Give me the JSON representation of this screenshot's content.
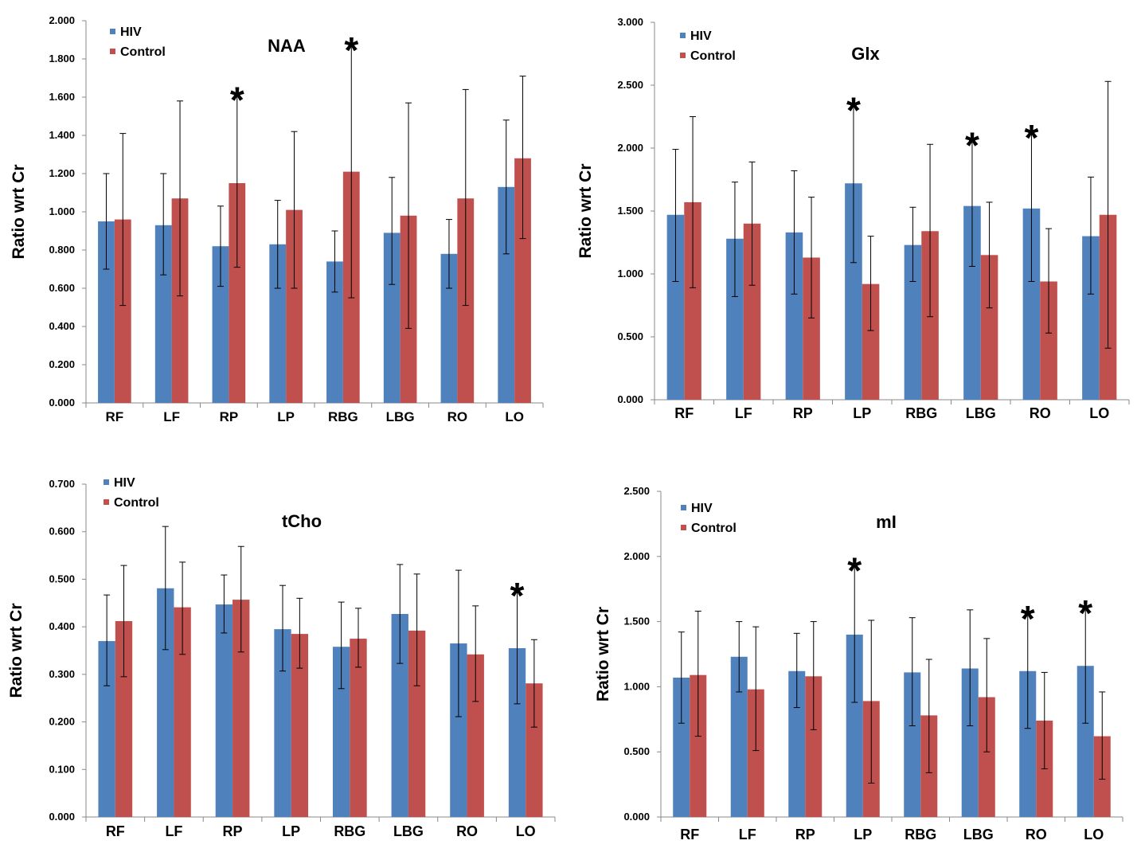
{
  "colors": {
    "HIV": "#4F81BD",
    "Control": "#C0504D"
  },
  "chart_data": [
    {
      "type": "bar",
      "title": "NAA",
      "ylabel": "Ratio wrt Cr",
      "xlabel": "",
      "ylim": [
        0,
        2
      ],
      "ystep": 0.2,
      "legend": [
        "HIV",
        "Control"
      ],
      "legend_position": "top-left",
      "categories": [
        "RF",
        "LF",
        "RP",
        "LP",
        "RBG",
        "LBG",
        "RO",
        "LO"
      ],
      "series": [
        {
          "name": "HIV",
          "values": [
            0.95,
            0.93,
            0.82,
            0.83,
            0.74,
            0.89,
            0.78,
            1.13
          ],
          "err_high": [
            1.2,
            1.2,
            1.03,
            1.06,
            0.9,
            1.18,
            0.96,
            1.48
          ],
          "err_low": [
            0.7,
            0.67,
            0.61,
            0.6,
            0.58,
            0.62,
            0.6,
            0.78
          ]
        },
        {
          "name": "Control",
          "values": [
            0.96,
            1.07,
            1.15,
            1.01,
            1.21,
            0.98,
            1.07,
            1.28
          ],
          "err_high": [
            1.41,
            1.58,
            1.61,
            1.42,
            1.87,
            1.57,
            1.64,
            1.71
          ],
          "err_low": [
            0.51,
            0.56,
            0.71,
            0.6,
            0.55,
            0.39,
            0.51,
            0.86
          ]
        }
      ],
      "significance": [
        {
          "category": "RP",
          "series": "Control",
          "mark": "*"
        },
        {
          "category": "RBG",
          "series": "Control",
          "mark": "*"
        }
      ]
    },
    {
      "type": "bar",
      "title": "Glx",
      "ylabel": "Ratio wrt Cr",
      "xlabel": "",
      "ylim": [
        0,
        3
      ],
      "ystep": 0.5,
      "legend": [
        "HIV",
        "Control"
      ],
      "legend_position": "top-left",
      "categories": [
        "RF",
        "LF",
        "RP",
        "LP",
        "RBG",
        "LBG",
        "RO",
        "LO"
      ],
      "series": [
        {
          "name": "HIV",
          "values": [
            1.47,
            1.28,
            1.33,
            1.72,
            1.23,
            1.54,
            1.52,
            1.3
          ],
          "err_high": [
            1.99,
            1.73,
            1.82,
            2.34,
            1.53,
            2.06,
            2.12,
            1.77
          ],
          "err_low": [
            0.94,
            0.82,
            0.84,
            1.09,
            0.94,
            1.06,
            0.94,
            0.84
          ]
        },
        {
          "name": "Control",
          "values": [
            1.57,
            1.4,
            1.13,
            0.92,
            1.34,
            1.15,
            0.94,
            1.47
          ],
          "err_high": [
            2.25,
            1.89,
            1.61,
            1.3,
            2.03,
            1.57,
            1.36,
            2.53
          ],
          "err_low": [
            0.89,
            0.91,
            0.65,
            0.55,
            0.66,
            0.73,
            0.53,
            0.41
          ]
        }
      ],
      "significance": [
        {
          "category": "LP",
          "series": "HIV",
          "mark": "*"
        },
        {
          "category": "LBG",
          "series": "HIV",
          "mark": "*"
        },
        {
          "category": "RO",
          "series": "HIV",
          "mark": "*"
        }
      ]
    },
    {
      "type": "bar",
      "title": "tCho",
      "ylabel": "Ratio wrt Cr",
      "xlabel": "",
      "ylim": [
        0,
        0.7
      ],
      "ystep": 0.1,
      "legend": [
        "HIV",
        "Control"
      ],
      "legend_position": "top-left",
      "categories": [
        "RF",
        "LF",
        "RP",
        "LP",
        "RBG",
        "LBG",
        "RO",
        "LO"
      ],
      "series": [
        {
          "name": "HIV",
          "values": [
            0.37,
            0.481,
            0.447,
            0.395,
            0.358,
            0.427,
            0.365,
            0.355
          ],
          "err_high": [
            0.467,
            0.611,
            0.509,
            0.487,
            0.452,
            0.531,
            0.519,
            0.476
          ],
          "err_low": [
            0.276,
            0.352,
            0.387,
            0.307,
            0.27,
            0.323,
            0.211,
            0.238
          ]
        },
        {
          "name": "Control",
          "values": [
            0.412,
            0.441,
            0.457,
            0.385,
            0.375,
            0.392,
            0.342,
            0.281
          ],
          "err_high": [
            0.529,
            0.536,
            0.569,
            0.46,
            0.439,
            0.511,
            0.444,
            0.373
          ],
          "err_low": [
            0.295,
            0.342,
            0.347,
            0.313,
            0.315,
            0.276,
            0.243,
            0.189
          ]
        }
      ],
      "significance": [
        {
          "category": "LO",
          "series": "HIV",
          "mark": "*"
        }
      ]
    },
    {
      "type": "bar",
      "title": "mI",
      "ylabel": "Ratio wrt Cr",
      "xlabel": "",
      "ylim": [
        0,
        2.5
      ],
      "ystep": 0.5,
      "legend": [
        "HIV",
        "Control"
      ],
      "legend_position": "top-left",
      "categories": [
        "RF",
        "LF",
        "RP",
        "LP",
        "RBG",
        "LBG",
        "RO",
        "LO"
      ],
      "series": [
        {
          "name": "HIV",
          "values": [
            1.07,
            1.23,
            1.12,
            1.4,
            1.11,
            1.14,
            1.12,
            1.16
          ],
          "err_high": [
            1.42,
            1.5,
            1.41,
            1.93,
            1.53,
            1.59,
            1.56,
            1.6
          ],
          "err_low": [
            0.72,
            0.96,
            0.84,
            0.88,
            0.7,
            0.7,
            0.68,
            0.72
          ]
        },
        {
          "name": "Control",
          "values": [
            1.09,
            0.98,
            1.08,
            0.89,
            0.78,
            0.92,
            0.74,
            0.62
          ],
          "err_high": [
            1.58,
            1.46,
            1.5,
            1.51,
            1.21,
            1.37,
            1.11,
            0.96
          ],
          "err_low": [
            0.62,
            0.51,
            0.67,
            0.26,
            0.34,
            0.5,
            0.37,
            0.29
          ]
        }
      ],
      "significance": [
        {
          "category": "LP",
          "series": "HIV",
          "mark": "*"
        },
        {
          "category": "RO",
          "series": "HIV",
          "mark": "*"
        },
        {
          "category": "LO",
          "series": "HIV",
          "mark": "*"
        }
      ]
    }
  ]
}
